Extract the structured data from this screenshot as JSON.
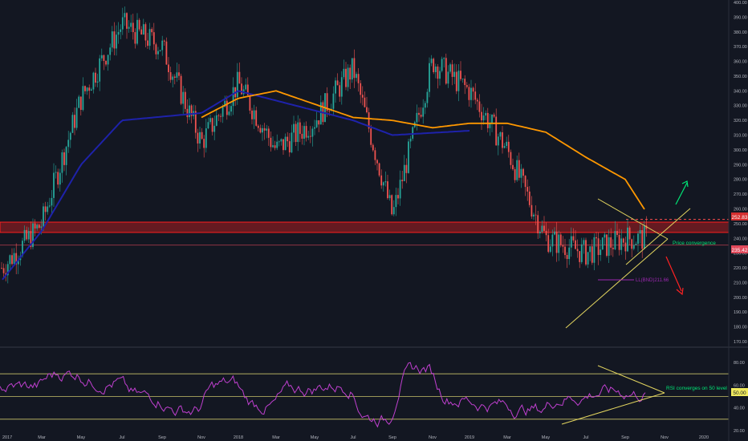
{
  "colors": {
    "background": "#131722",
    "up": "#26a69a",
    "down": "#ef5350",
    "ma_short": "#1e22aa",
    "ma_long": "#ff9800",
    "resistance": "#ff1f1f",
    "support_line": "#e3d55f",
    "rsi": "#c040d0",
    "price_note": "#00e676",
    "axis_text": "#b2b5be",
    "last_price_bg": "#e0485a",
    "rsi_tag_bg": "#f0ea5e"
  },
  "chart_data": [
    {
      "type": "candlestick",
      "x_ticks": [
        "2017",
        "Mar",
        "May",
        "Jul",
        "Sep",
        "Nov",
        "2018",
        "Mar",
        "May",
        "Jul",
        "Sep",
        "Nov",
        "2019",
        "Mar",
        "May",
        "Jul",
        "Sep",
        "Nov",
        "2020"
      ],
      "y_ticks": [
        170,
        180,
        190,
        200,
        210,
        220,
        230,
        240,
        250,
        260,
        270,
        280,
        290,
        300,
        310,
        320,
        330,
        340,
        350,
        360,
        370,
        380,
        390,
        400
      ],
      "ylim": [
        165,
        400
      ],
      "price_path": [
        [
          "2017",
          220
        ],
        [
          "Mar",
          250
        ],
        [
          "May",
          335
        ],
        [
          "Jul",
          385
        ],
        [
          "Sep",
          370
        ],
        [
          "Nov",
          305
        ],
        [
          "2018",
          345
        ],
        [
          "Mar",
          300
        ],
        [
          "May",
          320
        ],
        [
          "Jul",
          355
        ],
        [
          "Sep",
          255
        ],
        [
          "Nov",
          360
        ],
        [
          "2019",
          340
        ],
        [
          "Mar",
          300
        ],
        [
          "May",
          240
        ],
        [
          "Jul",
          230
        ],
        [
          "Sep",
          240
        ]
      ],
      "ma_short_path": [
        [
          "2017",
          212
        ],
        [
          "Mar",
          245
        ],
        [
          "May",
          290
        ],
        [
          "Jul",
          320
        ],
        [
          "Nov",
          325
        ],
        [
          "2018",
          340
        ],
        [
          "Jul",
          320
        ],
        [
          "Sep",
          310
        ],
        [
          "2019",
          313
        ]
      ],
      "ma_long_path": [
        [
          "Nov",
          322
        ],
        [
          "2018",
          335
        ],
        [
          "Mar",
          340
        ],
        [
          "Jul",
          322
        ],
        [
          "Sep",
          320
        ],
        [
          "Nov",
          315
        ],
        [
          "2019",
          318
        ],
        [
          "Mar",
          318
        ],
        [
          "May",
          312
        ],
        [
          "Jul",
          295
        ],
        [
          "Sep",
          280
        ],
        [
          "Oct",
          258
        ]
      ],
      "resistance_zone": [
        244,
        251
      ],
      "last_price": "235.42",
      "upper_level": "252.83",
      "lower_low_marker": "LL(BND)211.66",
      "price_note": "Price convergence"
    },
    {
      "type": "line",
      "series": [
        {
          "name": "RSI"
        }
      ],
      "y_ticks": [
        20,
        40,
        50,
        60,
        80
      ],
      "ylim": [
        15,
        92
      ],
      "levels": [
        70,
        50,
        30
      ],
      "current_value": "50.00",
      "note": "RSI converges on 50 level"
    }
  ]
}
